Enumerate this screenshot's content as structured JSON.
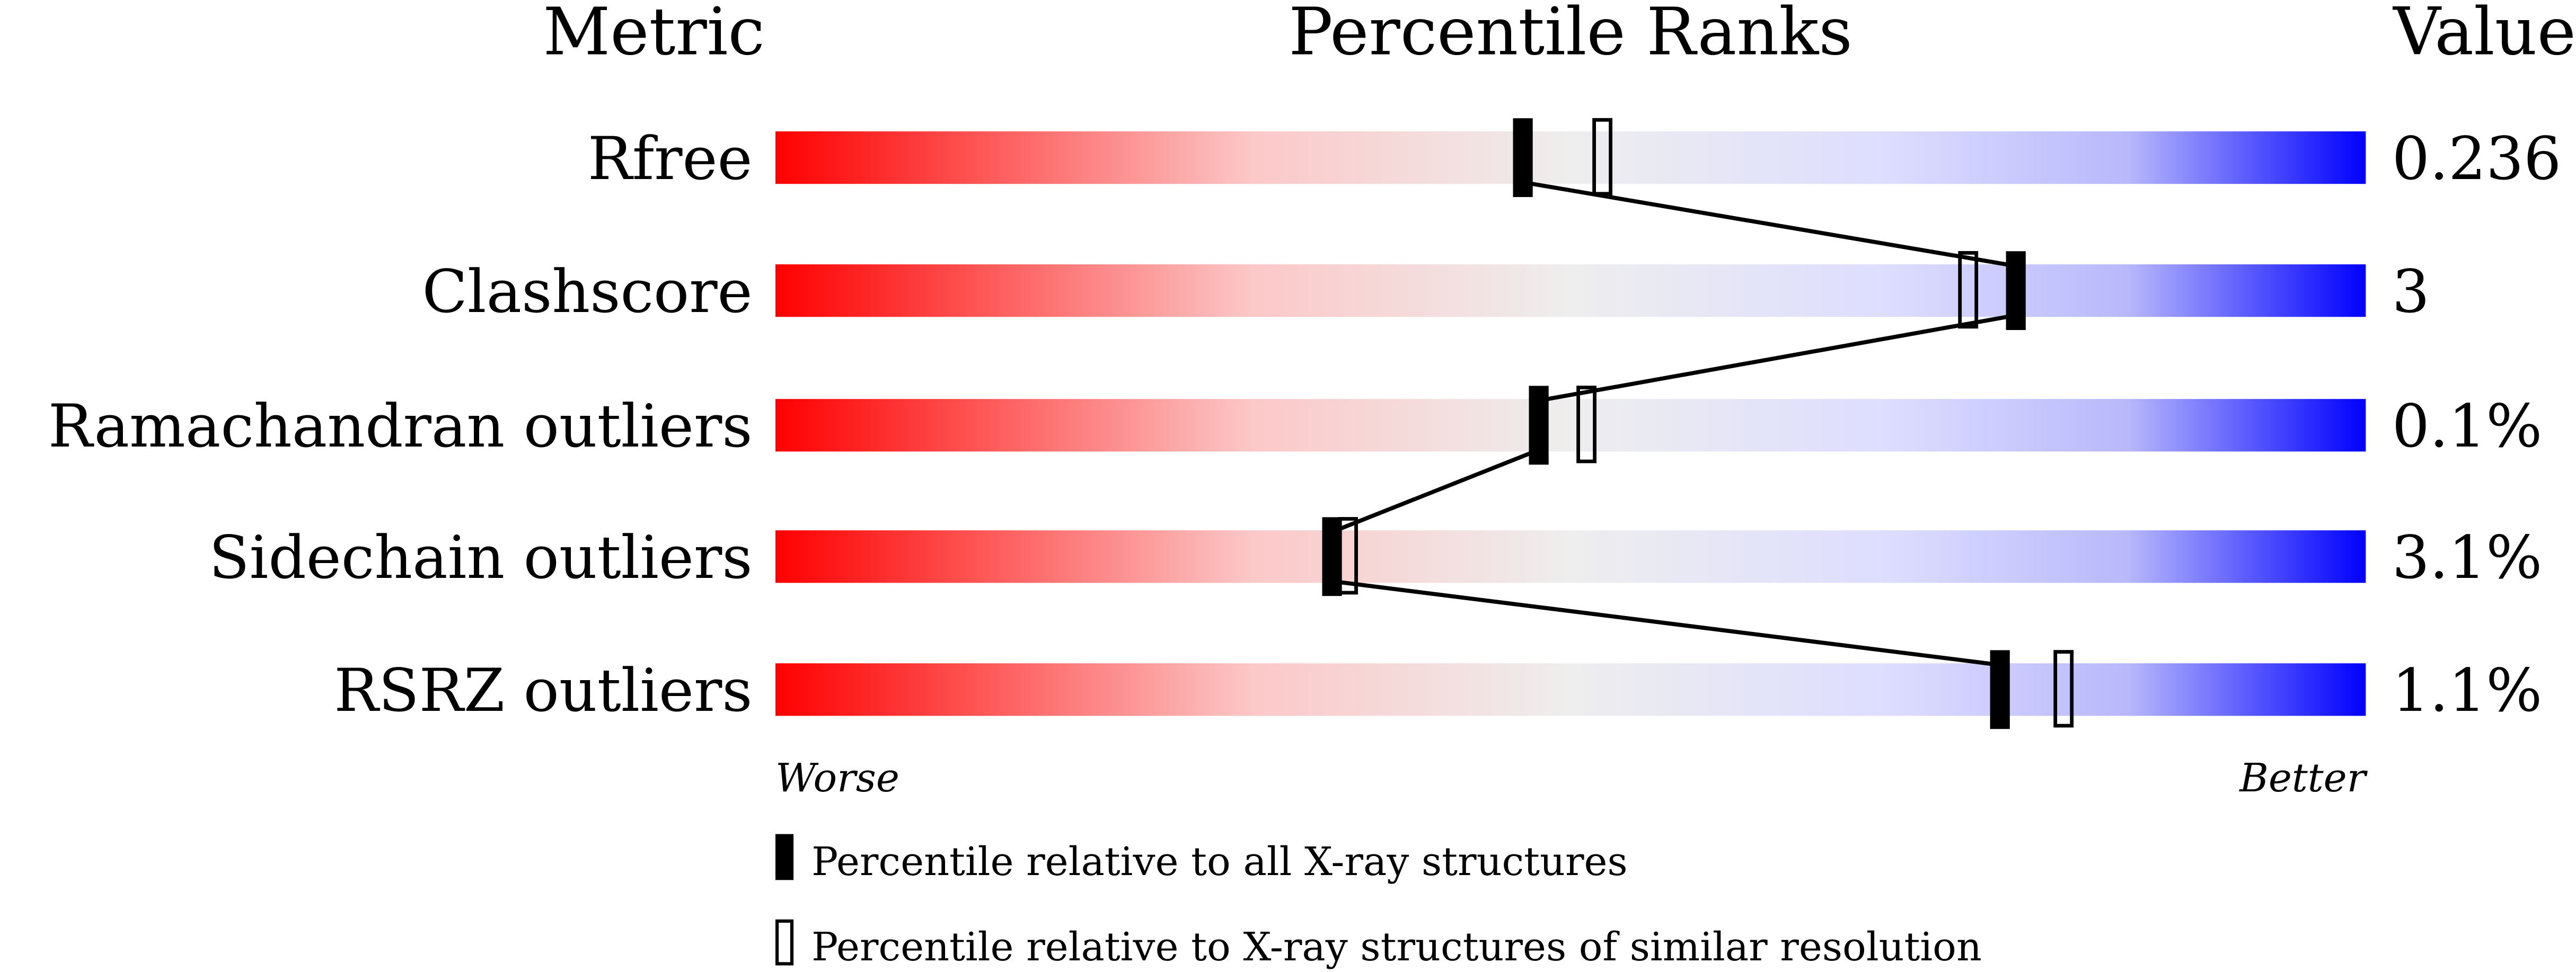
{
  "chart_data": {
    "type": "percentile-slider",
    "headers": {
      "metric": "Metric",
      "ranks": "Percentile Ranks",
      "value": "Value"
    },
    "xlim": [
      0,
      100
    ],
    "rows": [
      {
        "metric": "Rfree",
        "value": "0.236",
        "percentile_all": 47,
        "percentile_similar": 52
      },
      {
        "metric": "Clashscore",
        "value": "3",
        "percentile_all": 78,
        "percentile_similar": 75
      },
      {
        "metric": "Ramachandran outliers",
        "value": "0.1%",
        "percentile_all": 48,
        "percentile_similar": 51
      },
      {
        "metric": "Sidechain outliers",
        "value": "3.1%",
        "percentile_all": 35,
        "percentile_similar": 36
      },
      {
        "metric": "RSRZ outliers",
        "value": "1.1%",
        "percentile_all": 77,
        "percentile_similar": 81
      }
    ],
    "axis_labels": {
      "left": "Worse",
      "right": "Better"
    },
    "legend": [
      {
        "marker": "filled",
        "label": "Percentile relative to all X-ray structures"
      },
      {
        "marker": "open",
        "label": "Percentile relative to X-ray structures of similar resolution"
      }
    ],
    "gradient_colors": [
      "#ff0000",
      "#fcd8d8",
      "#eeeeee",
      "#ddddff",
      "#0000ff"
    ]
  }
}
